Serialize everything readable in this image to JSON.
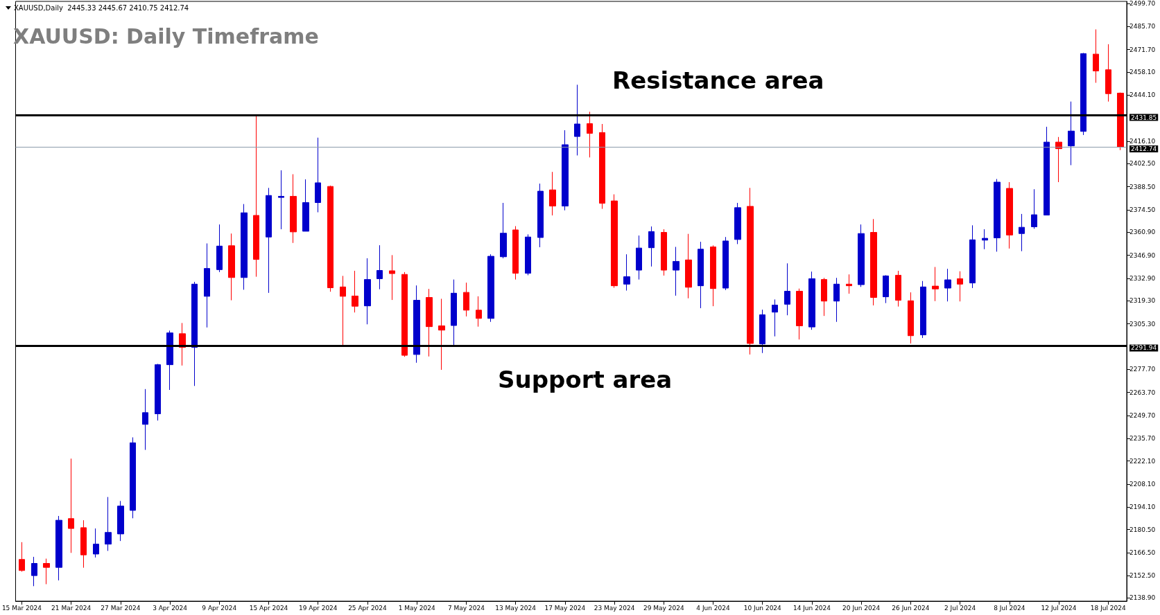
{
  "chart_data": {
    "type": "candlestick",
    "title": "XAUUSD: Daily Timeframe",
    "categories": [
      "15 Mar 2024",
      null,
      null,
      null,
      "21 Mar 2024",
      null,
      null,
      null,
      "27 Mar 2024",
      null,
      null,
      null,
      "3 Apr 2024",
      null,
      null,
      null,
      "9 Apr 2024",
      null,
      null,
      null,
      "15 Apr 2024",
      null,
      null,
      null,
      "19 Apr 2024",
      null,
      null,
      null,
      "25 Apr 2024",
      null,
      null,
      null,
      "1 May 2024",
      null,
      null,
      null,
      "7 May 2024",
      null,
      null,
      null,
      "13 May 2024",
      null,
      null,
      null,
      "17 May 2024",
      null,
      null,
      null,
      "23 May 2024",
      null,
      null,
      null,
      "29 May 2024",
      null,
      null,
      null,
      "4 Jun 2024",
      null,
      null,
      null,
      "10 Jun 2024",
      null,
      null,
      null,
      "14 Jun 2024",
      null,
      null,
      null,
      "20 Jun 2024",
      null,
      null,
      null,
      "26 Jun 2024",
      null,
      null,
      null,
      "2 Jul 2024",
      null,
      null,
      null,
      "8 Jul 2024",
      null,
      null,
      null,
      "12 Jul 2024",
      null,
      null,
      null,
      "18 Jul 2024",
      null
    ],
    "ohlc": [
      [
        2162.3,
        2172.8,
        2154.9,
        2155.6
      ],
      [
        2152.5,
        2163.9,
        2146.1,
        2159.9
      ],
      [
        2159.9,
        2162.8,
        2147.3,
        2157.5
      ],
      [
        2157.5,
        2188.7,
        2149.6,
        2186.1
      ],
      [
        2187.1,
        2223.5,
        2166.3,
        2181.1
      ],
      [
        2181.6,
        2186.1,
        2157.3,
        2165.1
      ],
      [
        2165.6,
        2181.1,
        2163.5,
        2171.6
      ],
      [
        2171.6,
        2200.2,
        2167.5,
        2178.7
      ],
      [
        2177.8,
        2197.8,
        2173.5,
        2194.7
      ],
      [
        2192.1,
        2236.4,
        2187.3,
        2233.1
      ],
      [
        2244.3,
        2265.7,
        2228.8,
        2251.4
      ],
      [
        2250.7,
        2281.0,
        2246.6,
        2280.5
      ],
      [
        2280.5,
        2301.2,
        2265.2,
        2299.8
      ],
      [
        2299.3,
        2305.8,
        2280.0,
        2291.0
      ],
      [
        2291.0,
        2330.8,
        2267.6,
        2329.4
      ],
      [
        2322.0,
        2354.1,
        2303.1,
        2338.9
      ],
      [
        2338.2,
        2365.6,
        2336.7,
        2352.5
      ],
      [
        2352.7,
        2360.1,
        2319.6,
        2333.4
      ],
      [
        2333.4,
        2378.0,
        2326.0,
        2372.7
      ],
      [
        2371.1,
        2431.8,
        2333.9,
        2344.4
      ],
      [
        2358.0,
        2387.8,
        2324.1,
        2383.2
      ],
      [
        2382.0,
        2398.5,
        2362.7,
        2382.7
      ],
      [
        2382.7,
        2396.1,
        2354.4,
        2361.1
      ],
      [
        2361.5,
        2393.0,
        2361.5,
        2378.9
      ],
      [
        2378.9,
        2418.3,
        2373.0,
        2390.9
      ],
      [
        2388.7,
        2389.2,
        2324.8,
        2327.2
      ],
      [
        2327.7,
        2334.4,
        2292.2,
        2322.0
      ],
      [
        2322.2,
        2337.5,
        2312.2,
        2316.0
      ],
      [
        2316.2,
        2345.1,
        2305.0,
        2332.2
      ],
      [
        2332.7,
        2353.0,
        2326.3,
        2337.7
      ],
      [
        2337.5,
        2347.0,
        2319.8,
        2335.8
      ],
      [
        2335.3,
        2336.7,
        2285.3,
        2286.2
      ],
      [
        2286.7,
        2328.6,
        2281.7,
        2319.6
      ],
      [
        2321.3,
        2326.5,
        2285.5,
        2303.6
      ],
      [
        2304.1,
        2320.5,
        2277.4,
        2301.5
      ],
      [
        2304.3,
        2332.2,
        2292.2,
        2323.9
      ],
      [
        2324.4,
        2330.3,
        2309.8,
        2313.6
      ],
      [
        2313.6,
        2322.0,
        2303.6,
        2308.6
      ],
      [
        2308.6,
        2347.5,
        2306.5,
        2346.3
      ],
      [
        2346.0,
        2378.7,
        2345.1,
        2360.3
      ],
      [
        2362.3,
        2364.6,
        2332.2,
        2336.0
      ],
      [
        2336.0,
        2359.6,
        2334.8,
        2358.0
      ],
      [
        2357.7,
        2390.4,
        2351.8,
        2385.8
      ],
      [
        2386.6,
        2397.5,
        2371.1,
        2376.8
      ],
      [
        2376.8,
        2422.8,
        2374.2,
        2414.0
      ],
      [
        2419.0,
        2450.4,
        2407.5,
        2426.6
      ],
      [
        2426.8,
        2434.0,
        2406.3,
        2420.9
      ],
      [
        2421.4,
        2426.6,
        2375.1,
        2378.5
      ],
      [
        2379.9,
        2383.9,
        2327.2,
        2328.4
      ],
      [
        2329.4,
        2347.5,
        2325.5,
        2333.9
      ],
      [
        2337.9,
        2358.9,
        2332.2,
        2351.3
      ],
      [
        2351.5,
        2364.4,
        2340.1,
        2361.3
      ],
      [
        2360.8,
        2362.7,
        2334.6,
        2337.9
      ],
      [
        2337.9,
        2352.0,
        2322.4,
        2343.2
      ],
      [
        2344.1,
        2359.9,
        2320.8,
        2327.5
      ],
      [
        2328.4,
        2355.1,
        2314.8,
        2350.6
      ],
      [
        2352.0,
        2352.9,
        2316.0,
        2326.7
      ],
      [
        2327.0,
        2358.0,
        2325.8,
        2355.6
      ],
      [
        2356.5,
        2378.7,
        2353.7,
        2375.8
      ],
      [
        2376.6,
        2387.8,
        2286.7,
        2293.4
      ],
      [
        2293.1,
        2313.9,
        2287.6,
        2310.8
      ],
      [
        2312.4,
        2320.1,
        2297.7,
        2316.7
      ],
      [
        2317.2,
        2342.0,
        2310.5,
        2325.1
      ],
      [
        2325.1,
        2326.7,
        2295.8,
        2304.1
      ],
      [
        2303.4,
        2337.0,
        2301.7,
        2332.7
      ],
      [
        2332.2,
        2333.2,
        2310.1,
        2319.1
      ],
      [
        2319.1,
        2333.2,
        2306.5,
        2329.4
      ],
      [
        2329.4,
        2335.3,
        2323.6,
        2328.4
      ],
      [
        2329.1,
        2365.6,
        2327.7,
        2360.1
      ],
      [
        2360.8,
        2368.9,
        2316.5,
        2321.3
      ],
      [
        2321.7,
        2334.8,
        2317.9,
        2334.4
      ],
      [
        2334.8,
        2337.5,
        2315.8,
        2319.6
      ],
      [
        2319.3,
        2324.4,
        2293.4,
        2298.1
      ],
      [
        2298.6,
        2331.3,
        2296.7,
        2327.7
      ],
      [
        2328.2,
        2339.8,
        2319.1,
        2326.5
      ],
      [
        2327.0,
        2338.7,
        2318.9,
        2332.0
      ],
      [
        2332.7,
        2337.2,
        2318.9,
        2329.4
      ],
      [
        2330.1,
        2365.1,
        2327.0,
        2356.3
      ],
      [
        2356.1,
        2362.7,
        2350.6,
        2357.2
      ],
      [
        2357.5,
        2393.2,
        2349.1,
        2391.3
      ],
      [
        2387.5,
        2391.3,
        2351.0,
        2359.2
      ],
      [
        2360.1,
        2372.0,
        2349.4,
        2363.9
      ],
      [
        2364.2,
        2387.0,
        2363.0,
        2371.5
      ],
      [
        2371.3,
        2424.9,
        2371.3,
        2415.6
      ],
      [
        2415.6,
        2418.7,
        2391.3,
        2411.6
      ],
      [
        2413.3,
        2440.2,
        2401.6,
        2422.3
      ],
      [
        2422.1,
        2469.7,
        2419.9,
        2469.3
      ],
      [
        2469.0,
        2484.0,
        2451.6,
        2458.8
      ],
      [
        2459.5,
        2475.0,
        2440.2,
        2445.0
      ],
      [
        2445.33,
        2445.67,
        2410.75,
        2412.74
      ]
    ],
    "colors": [
      "#ff0000",
      "#0000cc",
      "#ff0000",
      "#0000cc",
      "#ff0000",
      "#ff0000",
      "#0000cc",
      "#0000cc",
      "#0000cc",
      "#0000cc",
      "#0000cc",
      "#0000cc",
      "#0000cc",
      "#ff0000",
      "#0000cc",
      "#0000cc",
      "#0000cc",
      "#ff0000",
      "#0000cc",
      "#ff0000",
      "#0000cc",
      "#0000cc",
      "#ff0000",
      "#0000cc",
      "#0000cc",
      "#ff0000",
      "#ff0000",
      "#ff0000",
      "#0000cc",
      "#0000cc",
      "#ff0000",
      "#ff0000",
      "#0000cc",
      "#ff0000",
      "#ff0000",
      "#0000cc",
      "#ff0000",
      "#ff0000",
      "#0000cc",
      "#0000cc",
      "#ff0000",
      "#0000cc",
      "#0000cc",
      "#ff0000",
      "#0000cc",
      "#0000cc",
      "#ff0000",
      "#ff0000",
      "#ff0000",
      "#0000cc",
      "#0000cc",
      "#0000cc",
      "#ff0000",
      "#0000cc",
      "#ff0000",
      "#0000cc",
      "#ff0000",
      "#0000cc",
      "#0000cc",
      "#ff0000",
      "#0000cc",
      "#0000cc",
      "#0000cc",
      "#ff0000",
      "#0000cc",
      "#ff0000",
      "#0000cc",
      "#ff0000",
      "#0000cc",
      "#ff0000",
      "#0000cc",
      "#ff0000",
      "#ff0000",
      "#0000cc",
      "#ff0000",
      "#0000cc",
      "#ff0000",
      "#0000cc",
      "#0000cc",
      "#0000cc",
      "#ff0000",
      "#0000cc",
      "#0000cc",
      "#0000cc",
      "#ff0000",
      "#0000cc",
      "#0000cc",
      "#ff0000",
      "#ff0000",
      "#ff0000"
    ],
    "ylim": [
      2137,
      2501
    ],
    "yticks": [
      {
        "value": 2499.7,
        "label": "2499.70"
      },
      {
        "value": 2485.7,
        "label": "2485.70"
      },
      {
        "value": 2471.7,
        "label": "2471.70"
      },
      {
        "value": 2458.1,
        "label": "2458.10"
      },
      {
        "value": 2444.1,
        "label": "2444.10"
      },
      {
        "value": 2416.1,
        "label": "2416.10"
      },
      {
        "value": 2402.5,
        "label": "2402.50"
      },
      {
        "value": 2388.5,
        "label": "2388.50"
      },
      {
        "value": 2374.5,
        "label": "2374.50"
      },
      {
        "value": 2360.9,
        "label": "2360.90"
      },
      {
        "value": 2346.9,
        "label": "2346.90"
      },
      {
        "value": 2332.9,
        "label": "2332.90"
      },
      {
        "value": 2319.3,
        "label": "2319.30"
      },
      {
        "value": 2305.3,
        "label": "2305.30"
      },
      {
        "value": 2277.7,
        "label": "2277.70"
      },
      {
        "value": 2263.7,
        "label": "2263.70"
      },
      {
        "value": 2249.7,
        "label": "2249.70"
      },
      {
        "value": 2235.7,
        "label": "2235.70"
      },
      {
        "value": 2222.1,
        "label": "2222.10"
      },
      {
        "value": 2208.1,
        "label": "2208.10"
      },
      {
        "value": 2194.1,
        "label": "2194.10"
      },
      {
        "value": 2180.5,
        "label": "2180.50"
      },
      {
        "value": 2166.5,
        "label": "2166.50"
      },
      {
        "value": 2152.5,
        "label": "2152.50"
      },
      {
        "value": 2138.9,
        "label": "2138.90"
      }
    ],
    "ref_lines": [
      {
        "axis": "y",
        "value": 2431.85,
        "label": "2431.85",
        "color": "#000000",
        "line_style": "solid"
      },
      {
        "axis": "y",
        "value": 2291.94,
        "label": "2291.94",
        "color": "#000000",
        "line_style": "solid"
      },
      {
        "axis": "y",
        "value": 2412.74,
        "label": "2412.74",
        "color": "#8c9bab",
        "line_style": "solid"
      }
    ],
    "annotations": [
      "XAUUSD,Daily  2445.33 2445.67 2410.75 2412.74",
      "Resistance area",
      "Support area"
    ],
    "grid": false
  }
}
